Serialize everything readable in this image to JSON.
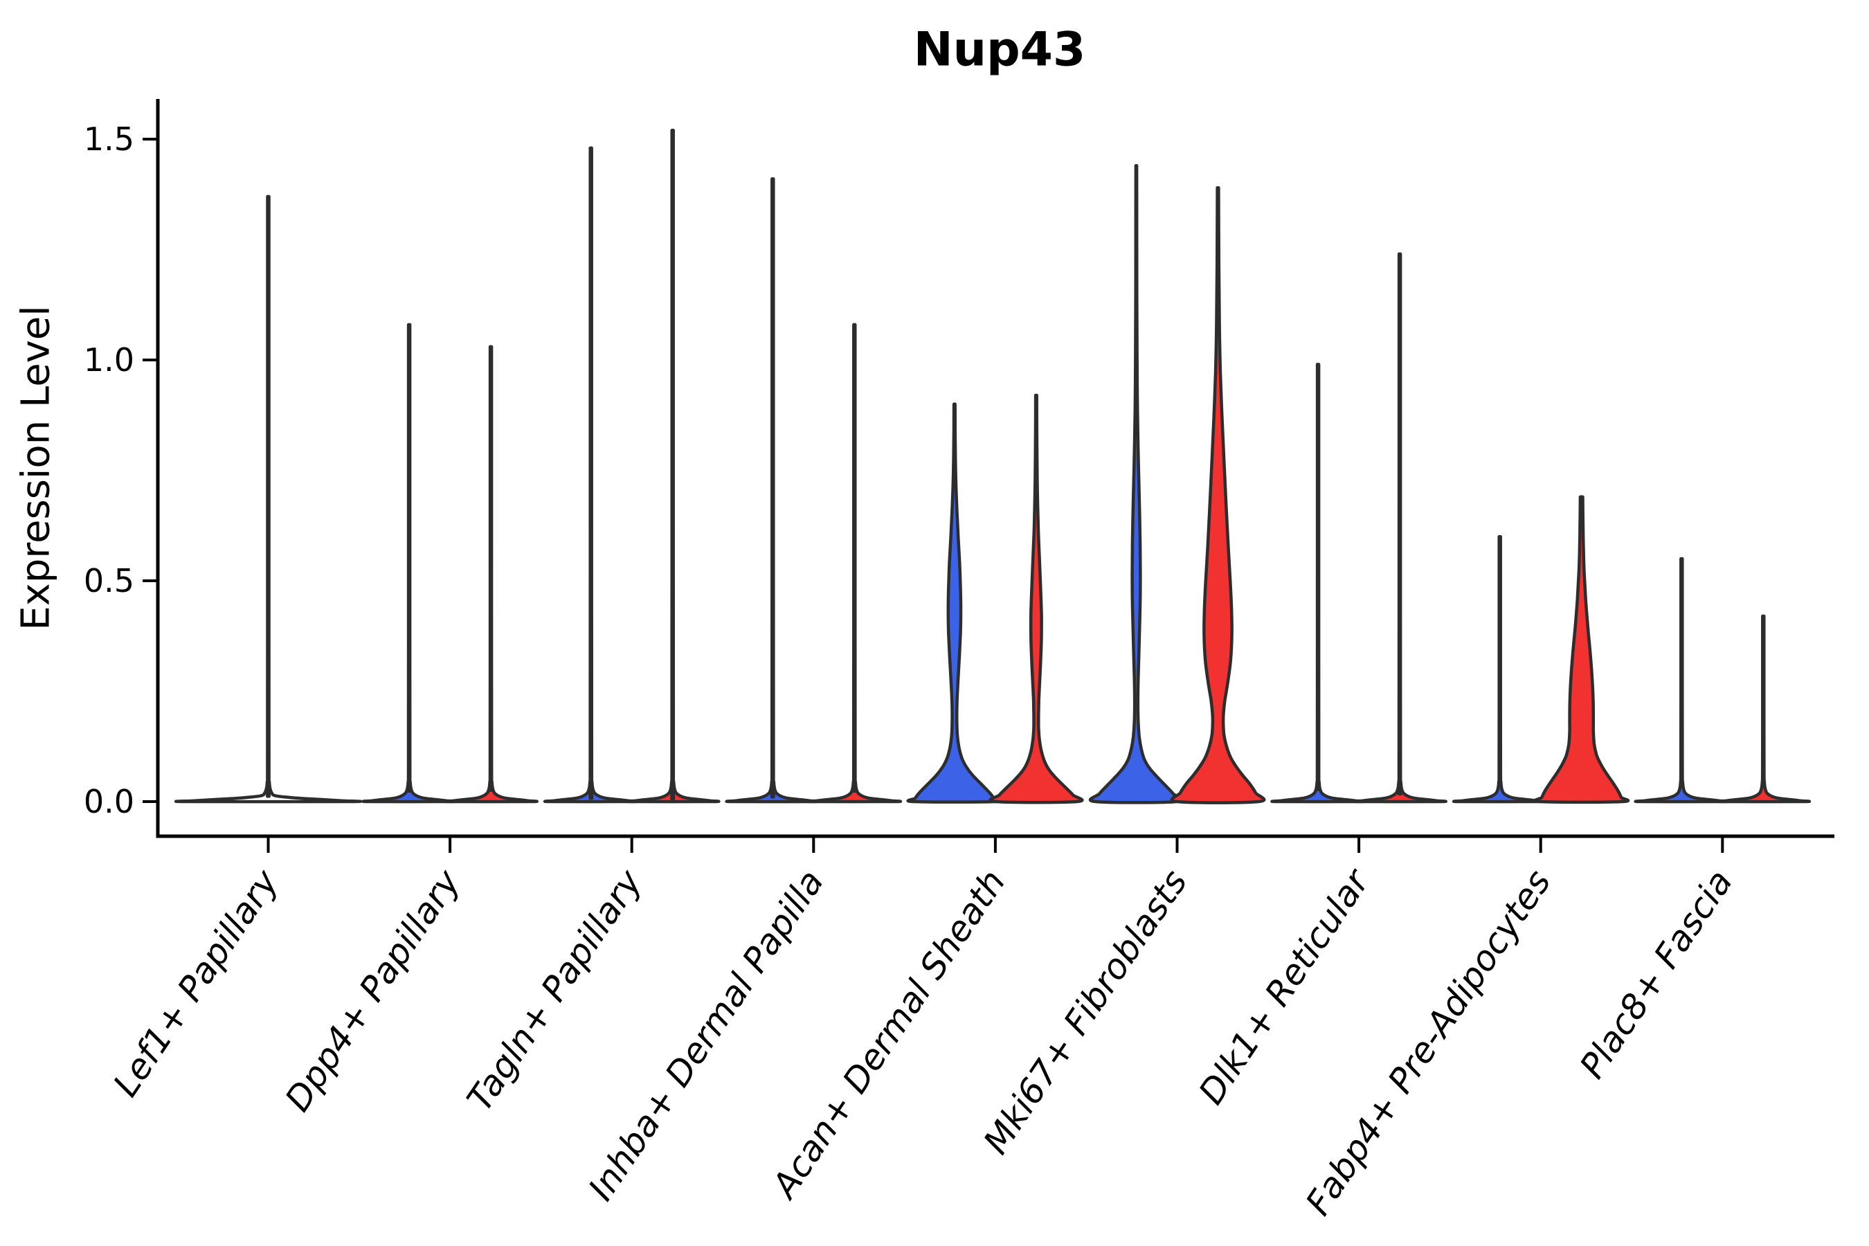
{
  "chart_data": {
    "type": "violin",
    "title": "Nup43",
    "ylabel": "Expression Level",
    "xlabel": "",
    "grid": false,
    "legend": "none",
    "background": "#ffffff",
    "ylim": [
      -0.08,
      1.59
    ],
    "yticks": [
      {
        "value": 0.0,
        "label": "0.0"
      },
      {
        "value": 0.5,
        "label": "0.5"
      },
      {
        "value": 1.0,
        "label": "1.0"
      },
      {
        "value": 1.5,
        "label": "1.5"
      }
    ],
    "x_tick_label_style": "italic, rotated 56deg, anchored at tick",
    "categories": [
      "Lef1+ Papillary",
      "Dpp4+ Papillary",
      "Tagln+ Papillary",
      "Inhba+ Dermal Papilla",
      "Acan+ Dermal Sheath",
      "Mki67+ Fibroblasts",
      "Dlk1+ Reticular",
      "Fabp4+ Pre-Adipocytes",
      "Plac8+ Fascia"
    ],
    "colors": {
      "group1_blue": "#3C63E7",
      "group2_red": "#F23131",
      "violin_outline": "#2D2D2D",
      "axis": "#000000",
      "text": "#000000"
    },
    "violins": [
      {
        "category": "Lef1+ Papillary",
        "cat_index": 0,
        "slot": "full",
        "group": null,
        "shape": "spike",
        "max_expression": 1.37,
        "fill": "none"
      },
      {
        "category": "Dpp4+ Papillary",
        "cat_index": 1,
        "slot": "left",
        "group": 1,
        "shape": "spike",
        "max_expression": 1.08,
        "fill": "#3C63E7"
      },
      {
        "category": "Dpp4+ Papillary",
        "cat_index": 1,
        "slot": "right",
        "group": 2,
        "shape": "spike",
        "max_expression": 1.03,
        "fill": "#F23131"
      },
      {
        "category": "Tagln+ Papillary",
        "cat_index": 2,
        "slot": "left",
        "group": 1,
        "shape": "spike",
        "max_expression": 1.48,
        "fill": "#3C63E7"
      },
      {
        "category": "Tagln+ Papillary",
        "cat_index": 2,
        "slot": "right",
        "group": 2,
        "shape": "spike",
        "max_expression": 1.52,
        "fill": "#F23131"
      },
      {
        "category": "Inhba+ Dermal Papilla",
        "cat_index": 3,
        "slot": "left",
        "group": 1,
        "shape": "spike",
        "max_expression": 1.41,
        "fill": "#3C63E7"
      },
      {
        "category": "Inhba+ Dermal Papilla",
        "cat_index": 3,
        "slot": "right",
        "group": 2,
        "shape": "spike",
        "max_expression": 1.08,
        "fill": "#F23131"
      },
      {
        "category": "Acan+ Dermal Sheath",
        "cat_index": 4,
        "slot": "left",
        "group": 1,
        "shape": "bulge",
        "max_expression": 0.9,
        "fill": "#3C63E7",
        "profile": [
          [
            0.9,
            0.014
          ],
          [
            0.84,
            0.016
          ],
          [
            0.78,
            0.022
          ],
          [
            0.72,
            0.035
          ],
          [
            0.66,
            0.06
          ],
          [
            0.6,
            0.09
          ],
          [
            0.54,
            0.125
          ],
          [
            0.48,
            0.148
          ],
          [
            0.43,
            0.155
          ],
          [
            0.38,
            0.145
          ],
          [
            0.33,
            0.12
          ],
          [
            0.28,
            0.09
          ],
          [
            0.24,
            0.068
          ],
          [
            0.21,
            0.058
          ],
          [
            0.18,
            0.058
          ],
          [
            0.15,
            0.07
          ],
          [
            0.125,
            0.105
          ],
          [
            0.1,
            0.175
          ],
          [
            0.08,
            0.28
          ],
          [
            0.06,
            0.44
          ],
          [
            0.04,
            0.65
          ],
          [
            0.02,
            0.86
          ],
          [
            0.008,
            0.96
          ],
          [
            0,
            1.0
          ]
        ]
      },
      {
        "category": "Acan+ Dermal Sheath",
        "cat_index": 4,
        "slot": "right",
        "group": 2,
        "shape": "bulge",
        "max_expression": 0.92,
        "fill": "#F23131",
        "profile": [
          [
            0.92,
            0.013
          ],
          [
            0.85,
            0.015
          ],
          [
            0.78,
            0.02
          ],
          [
            0.7,
            0.03
          ],
          [
            0.62,
            0.05
          ],
          [
            0.55,
            0.08
          ],
          [
            0.48,
            0.11
          ],
          [
            0.42,
            0.13
          ],
          [
            0.37,
            0.128
          ],
          [
            0.32,
            0.11
          ],
          [
            0.27,
            0.085
          ],
          [
            0.23,
            0.065
          ],
          [
            0.195,
            0.058
          ],
          [
            0.165,
            0.06
          ],
          [
            0.14,
            0.08
          ],
          [
            0.115,
            0.125
          ],
          [
            0.09,
            0.21
          ],
          [
            0.07,
            0.33
          ],
          [
            0.05,
            0.52
          ],
          [
            0.03,
            0.74
          ],
          [
            0.015,
            0.9
          ],
          [
            0,
            1.0
          ]
        ]
      },
      {
        "category": "Mki67+ Fibroblasts",
        "cat_index": 5,
        "slot": "left",
        "group": 1,
        "shape": "bulge",
        "max_expression": 1.44,
        "fill": "#3C63E7",
        "profile": [
          [
            1.44,
            0.011
          ],
          [
            1.3,
            0.012
          ],
          [
            1.15,
            0.014
          ],
          [
            1.02,
            0.018
          ],
          [
            0.92,
            0.025
          ],
          [
            0.82,
            0.04
          ],
          [
            0.74,
            0.06
          ],
          [
            0.66,
            0.08
          ],
          [
            0.58,
            0.095
          ],
          [
            0.51,
            0.1
          ],
          [
            0.45,
            0.095
          ],
          [
            0.39,
            0.08
          ],
          [
            0.33,
            0.062
          ],
          [
            0.28,
            0.048
          ],
          [
            0.24,
            0.04
          ],
          [
            0.205,
            0.04
          ],
          [
            0.175,
            0.05
          ],
          [
            0.145,
            0.075
          ],
          [
            0.12,
            0.12
          ],
          [
            0.095,
            0.2
          ],
          [
            0.075,
            0.33
          ],
          [
            0.055,
            0.52
          ],
          [
            0.035,
            0.73
          ],
          [
            0.018,
            0.9
          ],
          [
            0,
            1.0
          ]
        ]
      },
      {
        "category": "Mki67+ Fibroblasts",
        "cat_index": 5,
        "slot": "right",
        "group": 2,
        "shape": "bulge",
        "max_expression": 1.39,
        "fill": "#F23131",
        "profile": [
          [
            1.39,
            0.015
          ],
          [
            1.22,
            0.022
          ],
          [
            1.08,
            0.035
          ],
          [
            0.97,
            0.06
          ],
          [
            0.87,
            0.1
          ],
          [
            0.77,
            0.15
          ],
          [
            0.67,
            0.2
          ],
          [
            0.58,
            0.25
          ],
          [
            0.5,
            0.3
          ],
          [
            0.44,
            0.33
          ],
          [
            0.38,
            0.34
          ],
          [
            0.32,
            0.31
          ],
          [
            0.27,
            0.24
          ],
          [
            0.23,
            0.17
          ],
          [
            0.2,
            0.135
          ],
          [
            0.175,
            0.13
          ],
          [
            0.15,
            0.15
          ],
          [
            0.125,
            0.21
          ],
          [
            0.1,
            0.31
          ],
          [
            0.08,
            0.44
          ],
          [
            0.06,
            0.6
          ],
          [
            0.04,
            0.78
          ],
          [
            0.02,
            0.92
          ],
          [
            0,
            1.0
          ]
        ]
      },
      {
        "category": "Dlk1+ Reticular",
        "cat_index": 6,
        "slot": "left",
        "group": 1,
        "shape": "spike",
        "max_expression": 0.99,
        "fill": "#3C63E7"
      },
      {
        "category": "Dlk1+ Reticular",
        "cat_index": 6,
        "slot": "right",
        "group": 2,
        "shape": "spike",
        "max_expression": 1.24,
        "fill": "#F23131"
      },
      {
        "category": "Fabp4+ Pre-Adipocytes",
        "cat_index": 7,
        "slot": "left",
        "group": 1,
        "shape": "spike",
        "max_expression": 0.6,
        "fill": "#3C63E7"
      },
      {
        "category": "Fabp4+ Pre-Adipocytes",
        "cat_index": 7,
        "slot": "right",
        "group": 2,
        "shape": "bulge",
        "max_expression": 0.69,
        "fill": "#F23131",
        "profile": [
          [
            0.69,
            0.03
          ],
          [
            0.64,
            0.035
          ],
          [
            0.58,
            0.045
          ],
          [
            0.52,
            0.065
          ],
          [
            0.46,
            0.1
          ],
          [
            0.4,
            0.15
          ],
          [
            0.34,
            0.21
          ],
          [
            0.28,
            0.26
          ],
          [
            0.23,
            0.285
          ],
          [
            0.19,
            0.29
          ],
          [
            0.16,
            0.29
          ],
          [
            0.13,
            0.31
          ],
          [
            0.105,
            0.37
          ],
          [
            0.085,
            0.47
          ],
          [
            0.065,
            0.6
          ],
          [
            0.045,
            0.75
          ],
          [
            0.025,
            0.89
          ],
          [
            0.01,
            0.97
          ],
          [
            0,
            1.0
          ]
        ]
      },
      {
        "category": "Plac8+ Fascia",
        "cat_index": 8,
        "slot": "left",
        "group": 1,
        "shape": "spike",
        "max_expression": 0.55,
        "fill": "#3C63E7"
      },
      {
        "category": "Plac8+ Fascia",
        "cat_index": 8,
        "slot": "right",
        "group": 2,
        "shape": "spike",
        "max_expression": 0.42,
        "fill": "#F23131"
      }
    ]
  }
}
